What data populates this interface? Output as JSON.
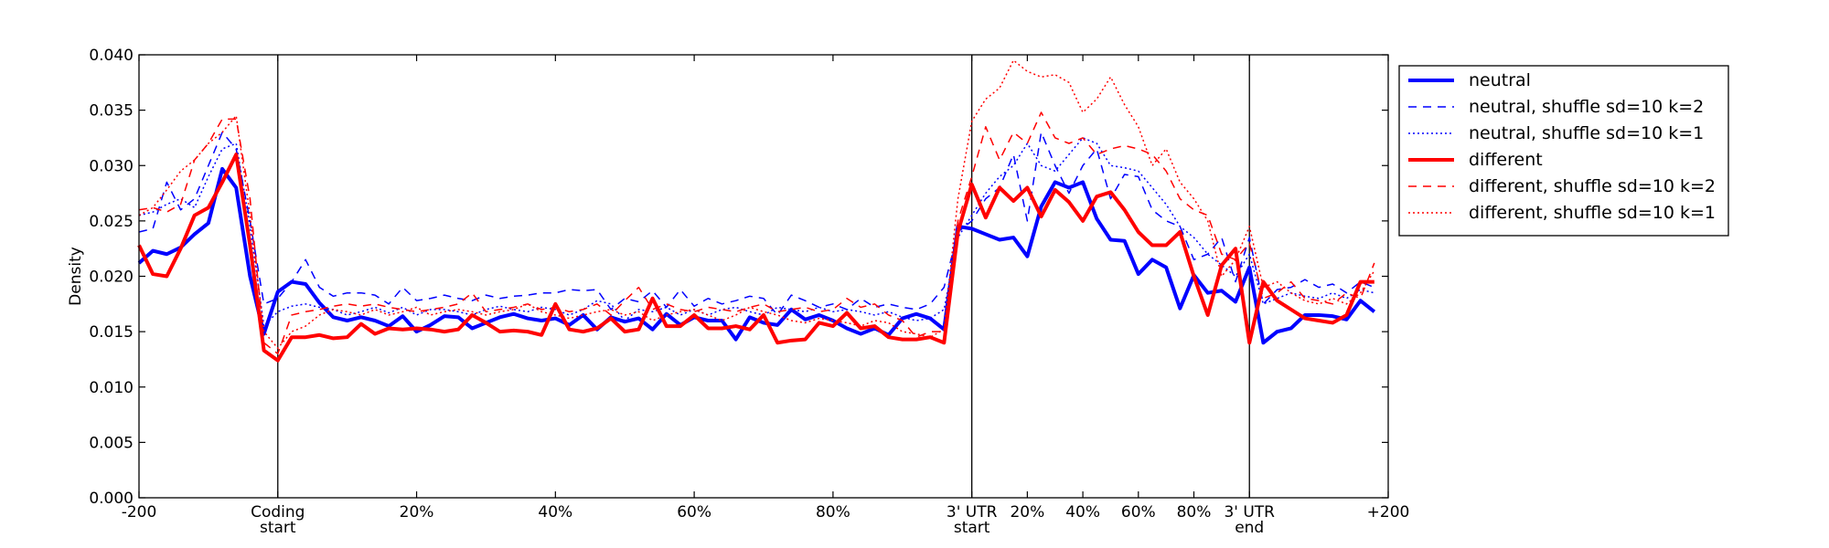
{
  "chart_data": {
    "type": "line",
    "ylabel": "Density",
    "xlabel": "",
    "ylim": [
      0,
      0.04
    ],
    "y_ticks": [
      "0.000",
      "0.005",
      "0.010",
      "0.015",
      "0.020",
      "0.025",
      "0.030",
      "0.035",
      "0.040"
    ],
    "y_tick_values": [
      0,
      0.005,
      0.01,
      0.015,
      0.02,
      0.025,
      0.03,
      0.035,
      0.04
    ],
    "x_range": [
      0,
      90
    ],
    "x_ticks": [
      {
        "x": 0,
        "lines": [
          "-200"
        ]
      },
      {
        "x": 10,
        "lines": [
          "Coding",
          "start"
        ]
      },
      {
        "x": 20,
        "lines": [
          "20%"
        ]
      },
      {
        "x": 30,
        "lines": [
          "40%"
        ]
      },
      {
        "x": 40,
        "lines": [
          "60%"
        ]
      },
      {
        "x": 50,
        "lines": [
          "80%"
        ]
      },
      {
        "x": 60,
        "lines": [
          "3' UTR",
          "start"
        ]
      },
      {
        "x": 64,
        "lines": [
          "20%"
        ]
      },
      {
        "x": 68,
        "lines": [
          "40%"
        ]
      },
      {
        "x": 72,
        "lines": [
          "60%"
        ]
      },
      {
        "x": 76,
        "lines": [
          "80%"
        ]
      },
      {
        "x": 80,
        "lines": [
          "3' UTR",
          "end"
        ]
      },
      {
        "x": 90,
        "lines": [
          "+200"
        ]
      }
    ],
    "region_boundaries": [
      10,
      60,
      80
    ],
    "legend_position": "outside-right",
    "series": [
      {
        "name": "neutral",
        "color": "#0000ff",
        "style": "solid",
        "width": 4,
        "values": [
          0.0212,
          0.0223,
          0.022,
          0.0226,
          0.0238,
          0.0248,
          0.0297,
          0.028,
          0.02,
          0.0148,
          0.0186,
          0.0195,
          0.0193,
          0.0176,
          0.0163,
          0.016,
          0.0163,
          0.016,
          0.0155,
          0.0164,
          0.015,
          0.0156,
          0.0164,
          0.0163,
          0.0153,
          0.0158,
          0.0163,
          0.0166,
          0.0162,
          0.016,
          0.0162,
          0.0156,
          0.0165,
          0.0152,
          0.0163,
          0.0159,
          0.0162,
          0.0152,
          0.0166,
          0.0156,
          0.0163,
          0.016,
          0.016,
          0.0143,
          0.0163,
          0.0158,
          0.0156,
          0.017,
          0.0161,
          0.0165,
          0.016,
          0.0153,
          0.0148,
          0.0153,
          0.0147,
          0.0162,
          0.0166,
          0.0162,
          0.0152,
          0.0245,
          0.0243,
          0.0238,
          0.0233,
          0.0235,
          0.0218,
          0.0263,
          0.0285,
          0.028,
          0.0285,
          0.0252,
          0.0233,
          0.0232,
          0.0202,
          0.0215,
          0.0208,
          0.0171,
          0.0201,
          0.0185,
          0.0187,
          0.0177,
          0.0208,
          0.014,
          0.015,
          0.0153,
          0.0165,
          0.0165,
          0.0164,
          0.0161,
          0.0178,
          0.0168
        ]
      },
      {
        "name": "neutral, shuffle sd=10 k=2",
        "color": "#0000ff",
        "style": "dashed",
        "width": 1.5,
        "values": [
          0.024,
          0.0243,
          0.0285,
          0.026,
          0.027,
          0.03,
          0.033,
          0.0315,
          0.025,
          0.0175,
          0.018,
          0.0195,
          0.0215,
          0.019,
          0.0182,
          0.0185,
          0.0185,
          0.0183,
          0.0175,
          0.019,
          0.0178,
          0.018,
          0.0183,
          0.018,
          0.0178,
          0.0183,
          0.018,
          0.0182,
          0.0183,
          0.0185,
          0.0185,
          0.0188,
          0.0187,
          0.0188,
          0.017,
          0.018,
          0.0177,
          0.0187,
          0.0172,
          0.0188,
          0.0173,
          0.018,
          0.0175,
          0.0178,
          0.0182,
          0.018,
          0.0165,
          0.0183,
          0.0178,
          0.0172,
          0.0175,
          0.017,
          0.018,
          0.0172,
          0.0175,
          0.0172,
          0.017,
          0.0175,
          0.019,
          0.024,
          0.025,
          0.027,
          0.028,
          0.031,
          0.025,
          0.033,
          0.03,
          0.0275,
          0.03,
          0.0315,
          0.027,
          0.0292,
          0.029,
          0.026,
          0.025,
          0.0245,
          0.0215,
          0.022,
          0.0235,
          0.0195,
          0.0235,
          0.0175,
          0.0188,
          0.019,
          0.0197,
          0.019,
          0.0193,
          0.0185,
          0.0195,
          0.019
        ]
      },
      {
        "name": "neutral, shuffle sd=10 k=1",
        "color": "#0000ff",
        "style": "dotted",
        "width": 1.5,
        "values": [
          0.0255,
          0.0258,
          0.0265,
          0.027,
          0.0262,
          0.029,
          0.0315,
          0.032,
          0.0245,
          0.0155,
          0.0168,
          0.0173,
          0.0175,
          0.0172,
          0.017,
          0.0165,
          0.0168,
          0.0172,
          0.0167,
          0.0172,
          0.0165,
          0.017,
          0.017,
          0.0168,
          0.0165,
          0.017,
          0.0173,
          0.017,
          0.0168,
          0.0172,
          0.017,
          0.0165,
          0.017,
          0.0178,
          0.0175,
          0.016,
          0.017,
          0.0168,
          0.0172,
          0.0165,
          0.017,
          0.0165,
          0.017,
          0.0172,
          0.0168,
          0.0165,
          0.0172,
          0.017,
          0.0168,
          0.0172,
          0.0168,
          0.017,
          0.0168,
          0.0165,
          0.0168,
          0.0163,
          0.016,
          0.0162,
          0.017,
          0.0235,
          0.0255,
          0.0275,
          0.029,
          0.03,
          0.032,
          0.03,
          0.0295,
          0.031,
          0.0325,
          0.032,
          0.03,
          0.0298,
          0.0295,
          0.028,
          0.0265,
          0.0245,
          0.0235,
          0.022,
          0.021,
          0.02,
          0.022,
          0.0175,
          0.018,
          0.0185,
          0.0182,
          0.018,
          0.0185,
          0.018,
          0.0188,
          0.0185
        ]
      },
      {
        "name": "different",
        "color": "#ff0000",
        "style": "solid",
        "width": 4,
        "values": [
          0.0228,
          0.0202,
          0.02,
          0.0225,
          0.0255,
          0.0262,
          0.0285,
          0.031,
          0.0228,
          0.0133,
          0.0124,
          0.0145,
          0.0145,
          0.0147,
          0.0144,
          0.0145,
          0.0157,
          0.0148,
          0.0153,
          0.0152,
          0.0153,
          0.0152,
          0.015,
          0.0152,
          0.0165,
          0.0158,
          0.015,
          0.0151,
          0.015,
          0.0147,
          0.0175,
          0.0152,
          0.015,
          0.0153,
          0.0162,
          0.015,
          0.0152,
          0.018,
          0.0155,
          0.0155,
          0.0165,
          0.0153,
          0.0153,
          0.0155,
          0.0152,
          0.0165,
          0.014,
          0.0142,
          0.0143,
          0.0158,
          0.0155,
          0.0167,
          0.0153,
          0.0155,
          0.0145,
          0.0143,
          0.0143,
          0.0145,
          0.014,
          0.024,
          0.0283,
          0.0253,
          0.028,
          0.0268,
          0.028,
          0.0254,
          0.0278,
          0.0267,
          0.025,
          0.0272,
          0.0276,
          0.026,
          0.024,
          0.0228,
          0.0228,
          0.024,
          0.02,
          0.0165,
          0.021,
          0.0225,
          0.014,
          0.0195,
          0.0178,
          0.017,
          0.0162,
          0.016,
          0.0158,
          0.0165,
          0.0195,
          0.0195
        ]
      },
      {
        "name": "different, shuffle sd=10 k=2",
        "color": "#ff0000",
        "style": "dashed",
        "width": 1.5,
        "values": [
          0.026,
          0.0262,
          0.0258,
          0.0265,
          0.0305,
          0.032,
          0.0342,
          0.0342,
          0.027,
          0.014,
          0.013,
          0.0165,
          0.0168,
          0.017,
          0.0173,
          0.0175,
          0.0173,
          0.0175,
          0.0172,
          0.017,
          0.0168,
          0.017,
          0.0172,
          0.0175,
          0.0185,
          0.0168,
          0.017,
          0.0172,
          0.0175,
          0.017,
          0.0172,
          0.0168,
          0.017,
          0.0175,
          0.0165,
          0.0178,
          0.019,
          0.017,
          0.0175,
          0.017,
          0.0168,
          0.0172,
          0.017,
          0.0168,
          0.0172,
          0.0175,
          0.0168,
          0.017,
          0.0172,
          0.0168,
          0.017,
          0.018,
          0.0172,
          0.0175,
          0.0165,
          0.016,
          0.0145,
          0.015,
          0.015,
          0.025,
          0.029,
          0.0335,
          0.0305,
          0.033,
          0.032,
          0.0348,
          0.0325,
          0.032,
          0.0325,
          0.031,
          0.0315,
          0.0318,
          0.0315,
          0.031,
          0.0295,
          0.027,
          0.026,
          0.0255,
          0.022,
          0.0215,
          0.023,
          0.018,
          0.0185,
          0.0195,
          0.018,
          0.0178,
          0.0175,
          0.0185,
          0.018,
          0.0212
        ]
      },
      {
        "name": "different, shuffle sd=10 k=1",
        "color": "#ff0000",
        "style": "dotted",
        "width": 1.5,
        "values": [
          0.0255,
          0.0262,
          0.0278,
          0.0295,
          0.0305,
          0.032,
          0.033,
          0.0345,
          0.0255,
          0.015,
          0.0135,
          0.015,
          0.0155,
          0.0165,
          0.017,
          0.0168,
          0.0165,
          0.017,
          0.0165,
          0.0168,
          0.0172,
          0.0165,
          0.0168,
          0.017,
          0.0168,
          0.0165,
          0.0168,
          0.017,
          0.0175,
          0.0168,
          0.0165,
          0.0162,
          0.0165,
          0.0168,
          0.017,
          0.0165,
          0.0168,
          0.016,
          0.0165,
          0.0168,
          0.017,
          0.0165,
          0.016,
          0.0165,
          0.0172,
          0.0168,
          0.0165,
          0.016,
          0.0158,
          0.0162,
          0.016,
          0.0158,
          0.0155,
          0.016,
          0.0158,
          0.015,
          0.0148,
          0.0145,
          0.0152,
          0.027,
          0.034,
          0.036,
          0.037,
          0.0395,
          0.0385,
          0.038,
          0.0382,
          0.0375,
          0.0348,
          0.036,
          0.038,
          0.0355,
          0.0335,
          0.03,
          0.0315,
          0.0285,
          0.027,
          0.025,
          0.02,
          0.0215,
          0.0245,
          0.019,
          0.0195,
          0.0185,
          0.0178,
          0.0175,
          0.018,
          0.0175,
          0.0185,
          0.0205
        ]
      }
    ]
  }
}
